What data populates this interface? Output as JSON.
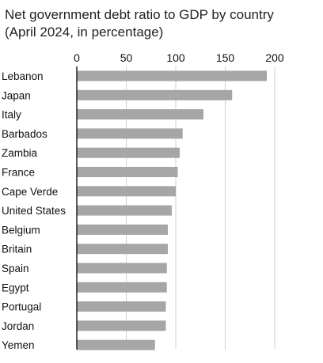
{
  "chart_data": {
    "type": "bar",
    "orientation": "horizontal",
    "title": "Net government debt ratio to GDP by country",
    "subtitle": "(April 2024, in percentage)",
    "categories": [
      "Lebanon",
      "Japan",
      "Italy",
      "Barbados",
      "Zambia",
      "France",
      "Cape Verde",
      "United States",
      "Belgium",
      "Britain",
      "Spain",
      "Egypt",
      "Portugal",
      "Jordan",
      "Yemen"
    ],
    "values": [
      192,
      157,
      128,
      107,
      104,
      102,
      100,
      96,
      92,
      92,
      91,
      91,
      90,
      90,
      79
    ],
    "xlim": [
      0,
      200
    ],
    "xticks": [
      0,
      50,
      100,
      150,
      200
    ],
    "xtick_position": "top",
    "grid": true,
    "bar_color": "#a6a6a6",
    "grid_color": "#d0d0d0",
    "axis_color": "#222222"
  }
}
